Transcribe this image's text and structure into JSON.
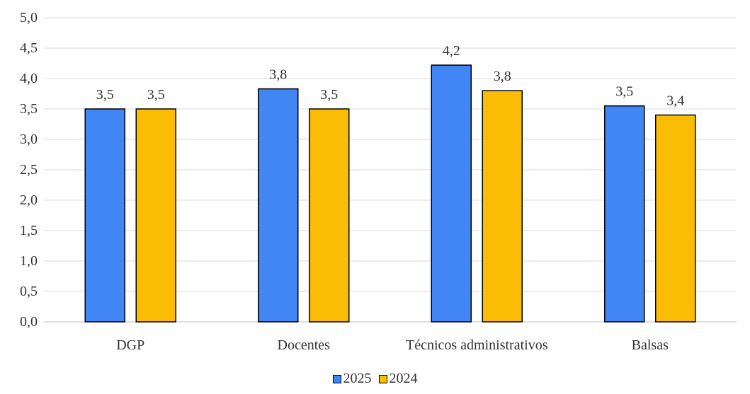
{
  "chart_data": {
    "type": "bar",
    "categories": [
      "DGP",
      "Docentes",
      "Técnicos administrativos",
      "Balsas"
    ],
    "series": [
      {
        "name": "2025",
        "color": "#4285f4",
        "values": [
          3.5,
          3.83,
          4.22,
          3.55
        ],
        "labels": [
          "3,5",
          "3,8",
          "4,2",
          "3,5"
        ]
      },
      {
        "name": "2024",
        "color": "#fbbc04",
        "values": [
          3.5,
          3.5,
          3.8,
          3.4
        ],
        "labels": [
          "3,5",
          "3,5",
          "3,8",
          "3,4"
        ]
      }
    ],
    "ylim": [
      0,
      5
    ],
    "yticks": [
      "0,0",
      "0,5",
      "1,0",
      "1,5",
      "2,0",
      "2,5",
      "3,0",
      "3,5",
      "4,0",
      "4,5",
      "5,0"
    ],
    "grid": true,
    "legend_position": "bottom"
  }
}
